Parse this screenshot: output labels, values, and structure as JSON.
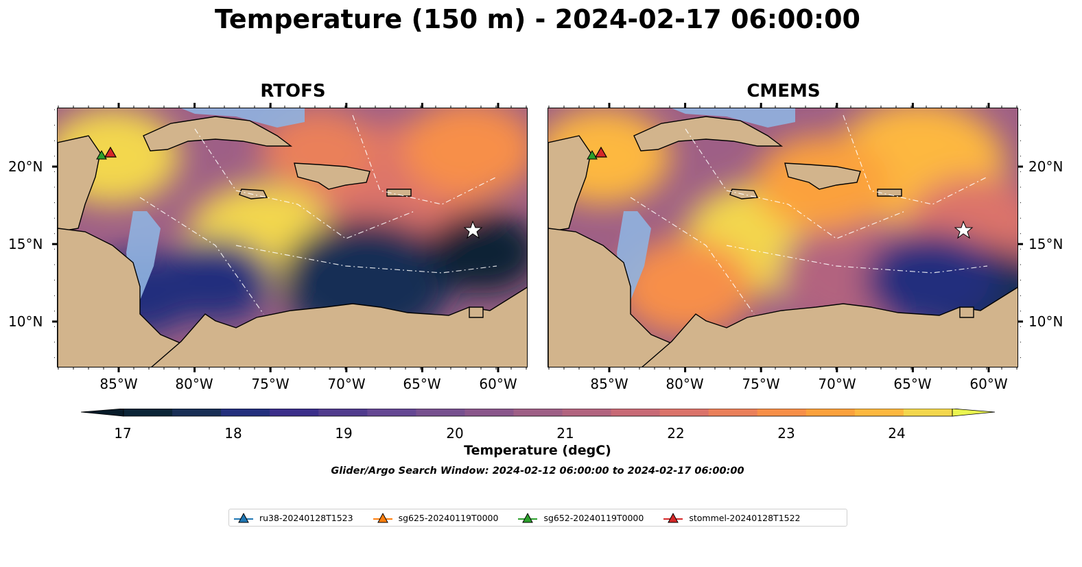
{
  "title": "Temperature (150 m) - 2024-02-17 06:00:00",
  "panels": [
    {
      "title": "RTOFS"
    },
    {
      "title": "CMEMS"
    }
  ],
  "map_extent": {
    "lon": [
      -89,
      -58
    ],
    "lat": [
      7,
      23.8
    ]
  },
  "lon_ticks": [
    "85°W",
    "80°W",
    "75°W",
    "70°W",
    "65°W",
    "60°W"
  ],
  "lat_ticks": [
    "20°N",
    "15°N",
    "10°N"
  ],
  "colorbar": {
    "label": "Temperature (degC)",
    "min": 16.75,
    "max": 24.5,
    "ticks": [
      "17",
      "18",
      "19",
      "20",
      "21",
      "22",
      "23",
      "24"
    ],
    "colors": [
      "#0b2436",
      "#182e55",
      "#232f7d",
      "#3b2e8a",
      "#503b8d",
      "#654793",
      "#77508f",
      "#8a568b",
      "#9e5f86",
      "#b2647f",
      "#c86a76",
      "#db736a",
      "#ea805a",
      "#f78f48",
      "#fba13c",
      "#fdb83f",
      "#f3d74d"
    ],
    "extend_min": "#071b29",
    "extend_max": "#eaf550"
  },
  "search_window": "Glider/Argo Search Window: 2024-02-12 06:00:00 to 2024-02-17 06:00:00",
  "legend": [
    {
      "label": "ru38-20240128T1523",
      "color": "#1f77b4"
    },
    {
      "label": "sg625-20240119T0000",
      "color": "#ff7f0e"
    },
    {
      "label": "sg652-20240119T0000",
      "color": "#2ca02c"
    },
    {
      "label": "stommel-20240128T1522",
      "color": "#d62728"
    }
  ],
  "map_colors": {
    "land": "#d2b48c",
    "shelf": "#8fb3e0",
    "deep_shelf": "#0b2436"
  }
}
